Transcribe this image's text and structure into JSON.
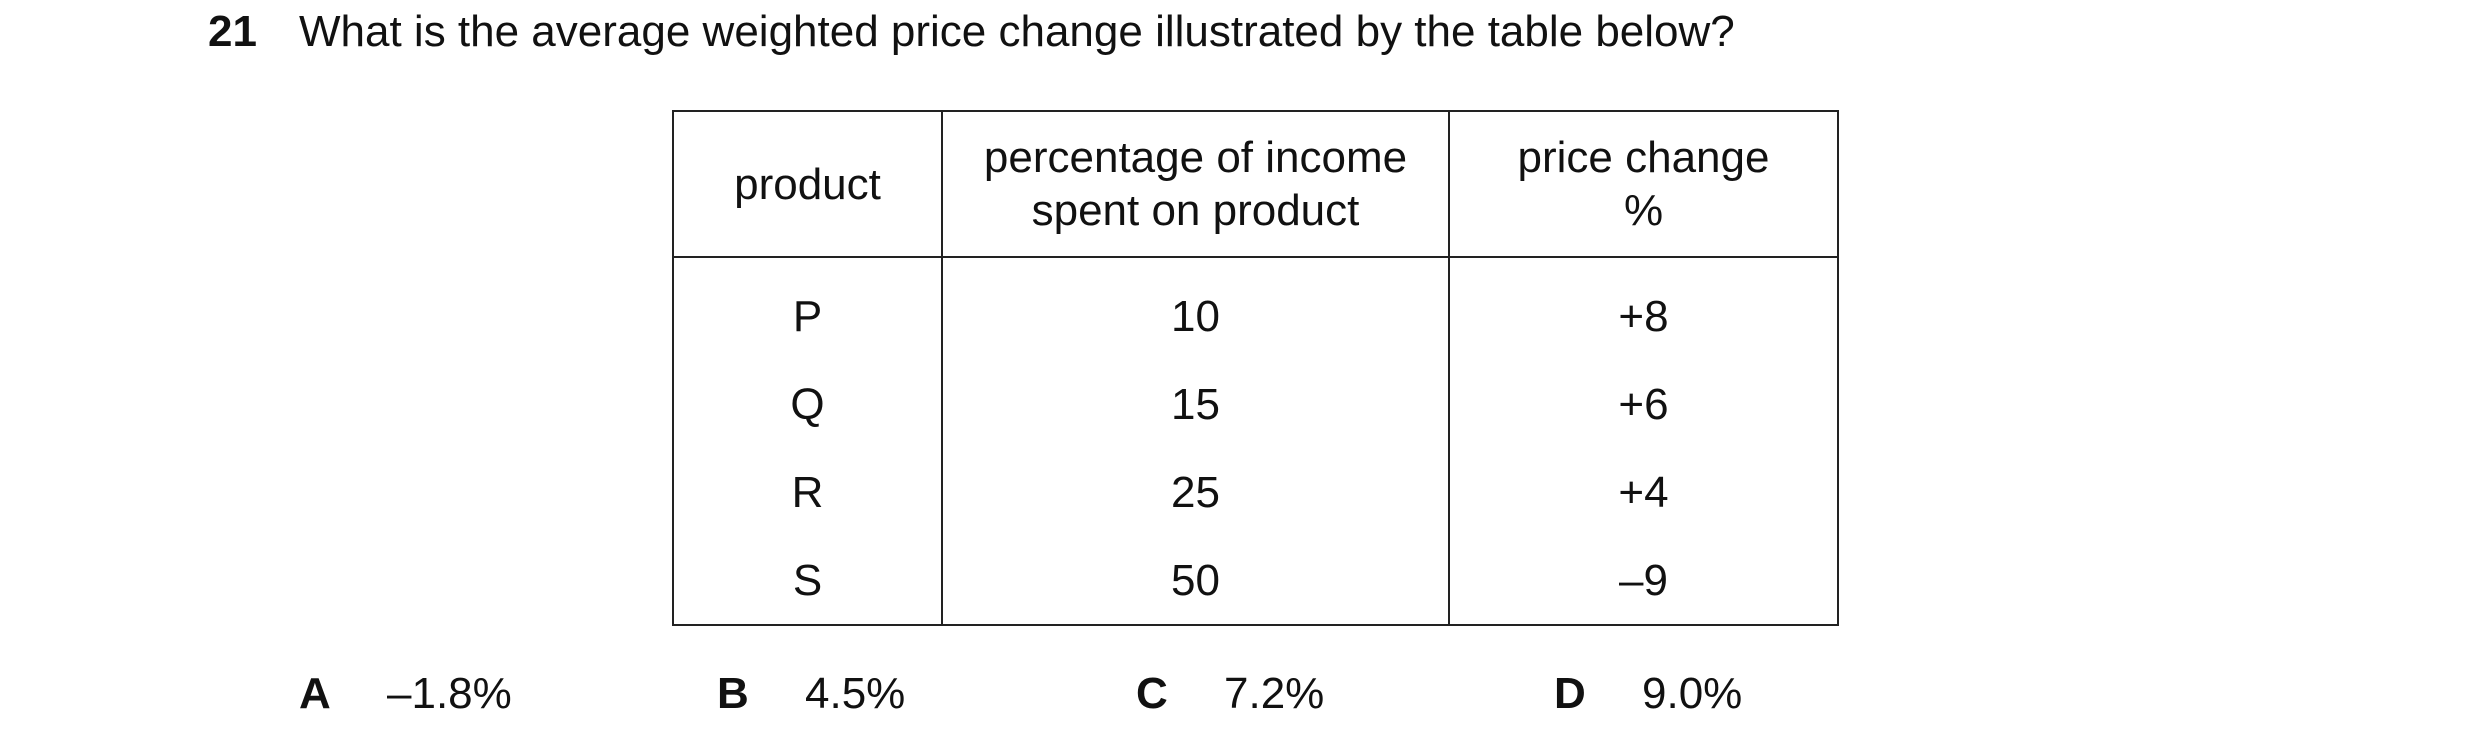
{
  "question": {
    "number": "21",
    "text": "What is the average weighted price change illustrated by the table below?"
  },
  "table": {
    "header": [
      [
        "product"
      ],
      [
        "percentage of income",
        "spent on product"
      ],
      [
        "price change",
        "%"
      ]
    ],
    "rows": [
      [
        "P",
        "10",
        "+8"
      ],
      [
        "Q",
        "15",
        "+6"
      ],
      [
        "R",
        "25",
        "+4"
      ],
      [
        "S",
        "50",
        "–9"
      ]
    ]
  },
  "options": [
    {
      "letter": "A",
      "text": "–1.8%"
    },
    {
      "letter": "B",
      "text": "4.5%"
    },
    {
      "letter": "C",
      "text": "7.2%"
    },
    {
      "letter": "D",
      "text": "9.0%"
    }
  ]
}
